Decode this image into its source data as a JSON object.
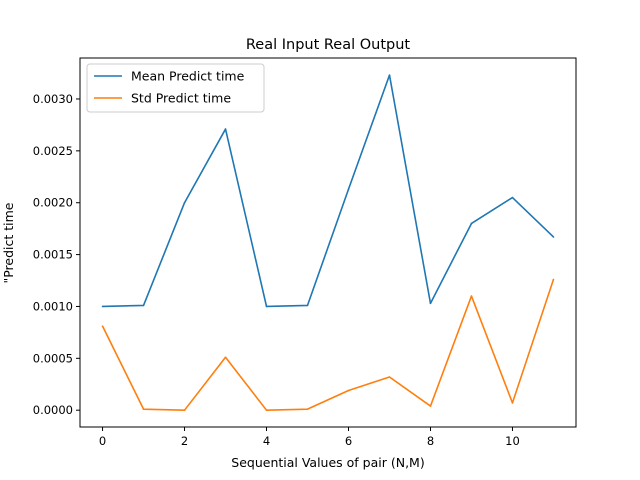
{
  "chart_data": {
    "type": "line",
    "title": "Real Input Real Output",
    "xlabel": "Sequential Values of pair (N,M)",
    "ylabel": "\"Predict time",
    "x": [
      0,
      1,
      2,
      3,
      4,
      5,
      6,
      7,
      8,
      9,
      10,
      11
    ],
    "xlim": [
      -0.55,
      11.55
    ],
    "ylim": [
      -0.000162,
      0.003395
    ],
    "xticks": [
      0,
      2,
      4,
      6,
      8,
      10
    ],
    "xtick_labels": [
      "0",
      "2",
      "4",
      "6",
      "8",
      "10"
    ],
    "yticks": [
      0.0,
      0.0005,
      0.001,
      0.0015,
      0.002,
      0.0025,
      0.003
    ],
    "ytick_labels": [
      "0.0000",
      "0.0005",
      "0.0010",
      "0.0015",
      "0.0020",
      "0.0025",
      "0.0030"
    ],
    "grid": false,
    "legend_position": "top-left",
    "series": [
      {
        "name": "Mean Predict time",
        "color": "#1f77b4",
        "values": [
          0.001,
          0.00101,
          0.002,
          0.00271,
          0.001,
          0.00101,
          0.00213,
          0.00323,
          0.00103,
          0.0018,
          0.00205,
          0.00167
        ]
      },
      {
        "name": "Std Predict time",
        "color": "#ff7f0e",
        "values": [
          0.00081,
          1e-05,
          0.0,
          0.00051,
          0.0,
          1e-05,
          0.00019,
          0.00032,
          4e-05,
          0.0011,
          7e-05,
          0.00126
        ]
      }
    ]
  }
}
